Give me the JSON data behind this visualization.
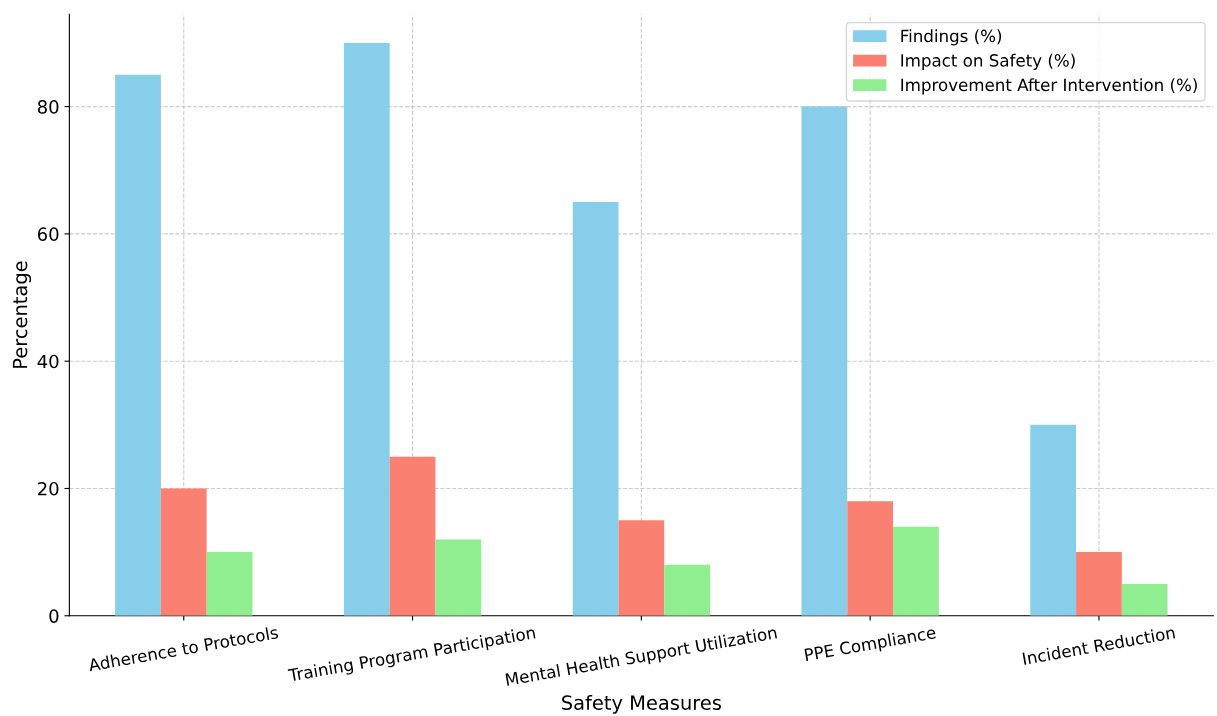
{
  "chart_data": {
    "type": "bar",
    "xlabel": "Safety Measures",
    "ylabel": "Percentage",
    "categories": [
      "Adherence to Protocols",
      "Training Program Participation",
      "Mental Health Support Utilization",
      "PPE Compliance",
      "Incident Reduction"
    ],
    "series": [
      {
        "name": "Findings (%)",
        "color": "#87ceeb",
        "values": [
          85,
          90,
          65,
          80,
          30
        ]
      },
      {
        "name": "Impact on Safety (%)",
        "color": "#fa8072",
        "values": [
          20,
          25,
          15,
          18,
          10
        ]
      },
      {
        "name": "Improvement After Intervention (%)",
        "color": "#90ee90",
        "values": [
          10,
          12,
          8,
          14,
          5
        ]
      }
    ],
    "ylim": [
      0,
      94.5
    ],
    "yticks": [
      0,
      20,
      40,
      60,
      80
    ],
    "grid": true,
    "legend": "top right"
  }
}
